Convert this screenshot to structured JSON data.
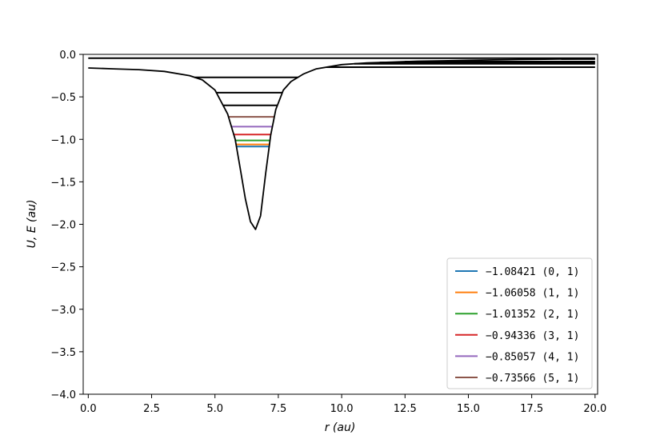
{
  "chart_data": {
    "type": "line",
    "xlabel": "r (au)",
    "ylabel": "U, E (au)",
    "xlim": [
      -0.2,
      20.1
    ],
    "ylim": [
      -4.0,
      0.0
    ],
    "xticks": [
      "0.0",
      "2.5",
      "5.0",
      "7.5",
      "10.0",
      "12.5",
      "15.0",
      "17.5",
      "20.0"
    ],
    "yticks": [
      "0.0",
      "−0.5",
      "−1.0",
      "−1.5",
      "−2.0",
      "−2.5",
      "−3.0",
      "−3.5",
      "−4.0"
    ],
    "xtick_values": [
      0,
      2.5,
      5,
      7.5,
      10,
      12.5,
      15,
      17.5,
      20
    ],
    "ytick_values": [
      0,
      -0.5,
      -1,
      -1.5,
      -2,
      -2.5,
      -3,
      -3.5,
      -4
    ],
    "grid": false,
    "legend_position": "bottom-right",
    "potential": {
      "color": "#000000",
      "x": [
        0,
        1,
        2,
        3,
        4,
        4.5,
        5,
        5.5,
        5.8,
        6.0,
        6.2,
        6.4,
        6.6,
        6.8,
        7.0,
        7.2,
        7.4,
        7.7,
        8.0,
        8.5,
        9.0,
        10,
        11,
        12,
        13,
        14,
        15,
        16,
        17,
        18,
        19,
        20
      ],
      "y": [
        -0.16,
        -0.17,
        -0.18,
        -0.2,
        -0.25,
        -0.3,
        -0.42,
        -0.7,
        -1.0,
        -1.35,
        -1.7,
        -1.97,
        -2.06,
        -1.9,
        -1.4,
        -0.95,
        -0.65,
        -0.42,
        -0.32,
        -0.23,
        -0.17,
        -0.12,
        -0.1,
        -0.09,
        -0.08,
        -0.075,
        -0.07,
        -0.065,
        -0.06,
        -0.057,
        -0.054,
        -0.05
      ]
    },
    "bound_levels": [
      {
        "label": "−1.08421 (0, 1)",
        "energy": -1.08421,
        "color": "#1f77b4"
      },
      {
        "label": "−1.06058 (1, 1)",
        "energy": -1.06058,
        "color": "#ff7f0e"
      },
      {
        "label": "−1.01352 (2, 1)",
        "energy": -1.01352,
        "color": "#2ca02c"
      },
      {
        "label": "−0.94336 (3, 1)",
        "energy": -0.94336,
        "color": "#d62728"
      },
      {
        "label": "−0.85057 (4, 1)",
        "energy": -0.85057,
        "color": "#9467bd"
      },
      {
        "label": "−0.73566 (5, 1)",
        "energy": -0.73566,
        "color": "#8c564b"
      }
    ],
    "other_levels": [
      -0.6,
      -0.45,
      -0.27,
      -0.15,
      -0.11,
      -0.095,
      -0.085,
      -0.075,
      -0.065,
      -0.055,
      -0.045
    ]
  }
}
